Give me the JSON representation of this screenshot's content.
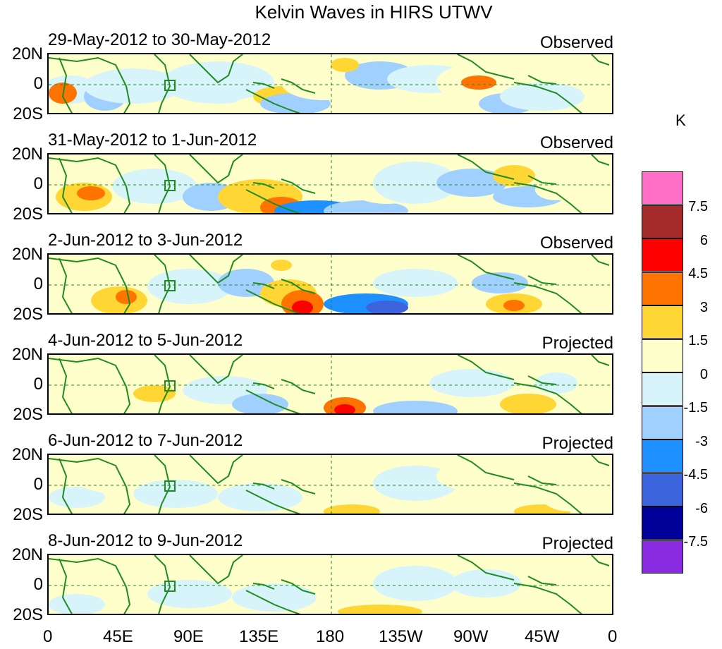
{
  "title": "Kelvin Waves in HIRS UTWV",
  "lat_labels": [
    "20N",
    "0",
    "20S"
  ],
  "lon_labels": [
    "0",
    "45E",
    "90E",
    "135E",
    "180",
    "135W",
    "90W",
    "45W",
    "0"
  ],
  "panels": [
    {
      "date": "29-May-2012 to 30-May-2012",
      "status": "Observed"
    },
    {
      "date": "31-May-2012 to 1-Jun-2012",
      "status": "Observed"
    },
    {
      "date": "2-Jun-2012 to 3-Jun-2012",
      "status": "Observed"
    },
    {
      "date": "4-Jun-2012 to 5-Jun-2012",
      "status": "Projected"
    },
    {
      "date": "6-Jun-2012 to 7-Jun-2012",
      "status": "Projected"
    },
    {
      "date": "8-Jun-2012 to 9-Jun-2012",
      "status": "Projected"
    }
  ],
  "colorbar": {
    "unit": "K",
    "labels": [
      "7.5",
      "6",
      "4.5",
      "3",
      "1.5",
      "0",
      "-1.5",
      "-3",
      "-4.5",
      "-6",
      "-7.5"
    ],
    "colors": [
      "#ff6ec7",
      "#a52a2a",
      "#ff0000",
      "#ff7300",
      "#ffd633",
      "#ffffcc",
      "#d6f4fa",
      "#9fd0ff",
      "#1e90ff",
      "#3c64dc",
      "#000099",
      "#8a2be2"
    ]
  },
  "map_colors": {
    "coast": "#1e8c1e",
    "grid": "#1e8c1e"
  }
}
